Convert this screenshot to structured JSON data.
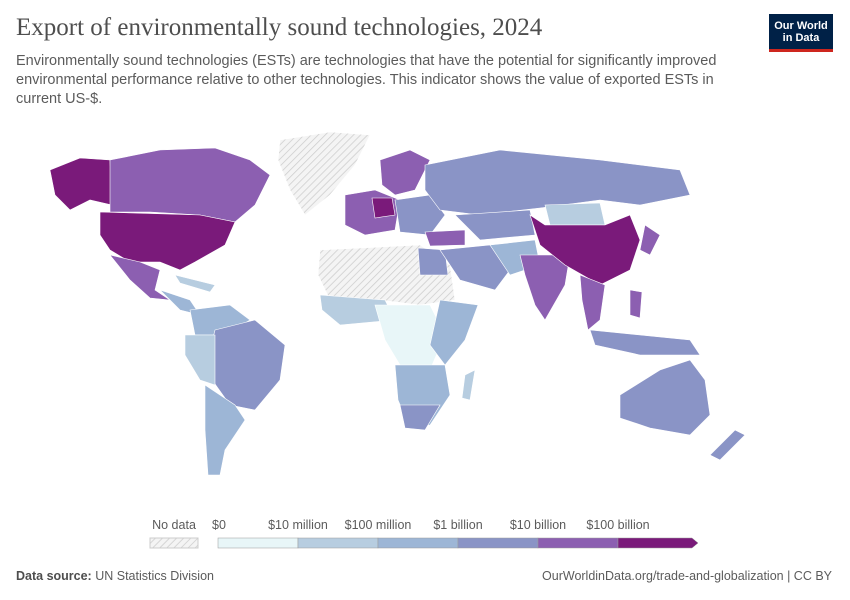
{
  "header": {
    "title": "Export of environmentally sound technologies, 2024",
    "subtitle": "Environmentally sound technologies (ESTs) are technologies that have the potential for significantly improved environmental performance relative to other technologies. This indicator shows the value of exported ESTs in current US-$.",
    "logo": [
      "Our World",
      "in Data"
    ]
  },
  "legend": {
    "no_data": "No data",
    "labels": [
      "$0",
      "$10 million",
      "$100 million",
      "$1 billion",
      "$10 billion",
      "$100 billion"
    ]
  },
  "footer": {
    "source_label": "Data source:",
    "source": "UN Statistics Division",
    "url": "OurWorldinData.org/trade-and-globalization | CC BY"
  }
}
